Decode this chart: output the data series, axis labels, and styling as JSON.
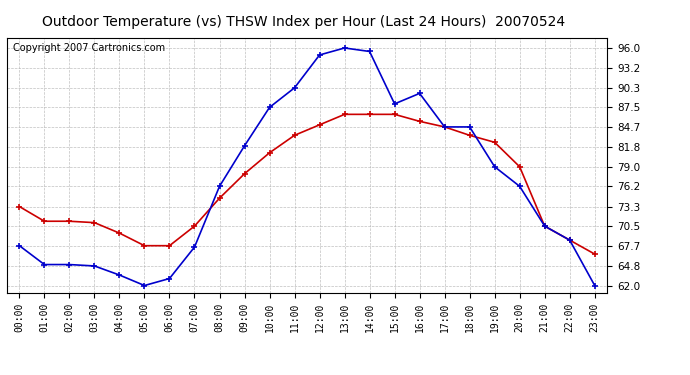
{
  "title": "Outdoor Temperature (vs) THSW Index per Hour (Last 24 Hours)  20070524",
  "copyright": "Copyright 2007 Cartronics.com",
  "hours": [
    "00:00",
    "01:00",
    "02:00",
    "03:00",
    "04:00",
    "05:00",
    "06:00",
    "07:00",
    "08:00",
    "09:00",
    "10:00",
    "11:00",
    "12:00",
    "13:00",
    "14:00",
    "15:00",
    "16:00",
    "17:00",
    "18:00",
    "19:00",
    "20:00",
    "21:00",
    "22:00",
    "23:00"
  ],
  "temp": [
    73.3,
    71.2,
    71.2,
    71.0,
    69.5,
    67.7,
    67.7,
    70.5,
    74.5,
    78.0,
    81.0,
    83.5,
    85.0,
    86.5,
    86.5,
    86.5,
    85.5,
    84.7,
    83.5,
    82.5,
    79.0,
    70.5,
    68.5,
    66.5
  ],
  "thsw": [
    67.7,
    65.0,
    65.0,
    64.8,
    63.5,
    62.0,
    63.0,
    67.5,
    76.2,
    82.0,
    87.5,
    90.3,
    95.0,
    96.0,
    95.5,
    88.0,
    89.5,
    84.7,
    84.7,
    79.0,
    76.2,
    70.5,
    68.5,
    62.0
  ],
  "yticks": [
    62.0,
    64.8,
    67.7,
    70.5,
    73.3,
    76.2,
    79.0,
    81.8,
    84.7,
    87.5,
    90.3,
    93.2,
    96.0
  ],
  "ylim": [
    61.0,
    97.5
  ],
  "temp_color": "#cc0000",
  "thsw_color": "#0000cc",
  "bg_color": "#ffffff",
  "grid_color": "#b0b0b0",
  "title_fontsize": 10,
  "copyright_fontsize": 7,
  "tick_fontsize": 7,
  "ytick_fontsize": 7.5
}
